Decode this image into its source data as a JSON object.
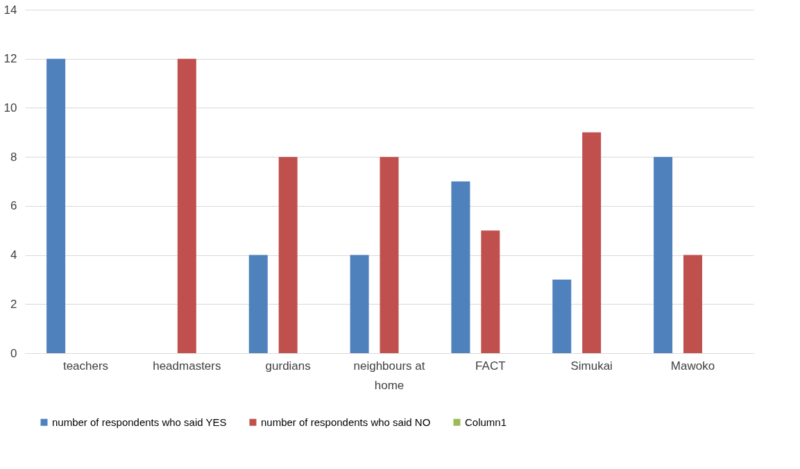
{
  "chart_data": {
    "type": "bar",
    "categories": [
      "teachers",
      "headmasters",
      "gurdians",
      "neighbours at home",
      "FACT",
      "Simukai",
      "Mawoko"
    ],
    "series": [
      {
        "name": "number of respondents who said YES",
        "color": "#4f81bd",
        "values": [
          12,
          0,
          4,
          4,
          7,
          3,
          8
        ]
      },
      {
        "name": "number of respondents who said NO",
        "color": "#c0504d",
        "values": [
          0,
          12,
          8,
          8,
          5,
          9,
          4
        ]
      },
      {
        "name": "Column1",
        "color": "#9bbb59",
        "values": [
          null,
          null,
          null,
          null,
          null,
          null,
          null
        ]
      }
    ],
    "ylim": [
      0,
      14
    ],
    "yticks": [
      0,
      2,
      4,
      6,
      8,
      10,
      12,
      14
    ],
    "grid": "y",
    "legend": "bottom"
  }
}
